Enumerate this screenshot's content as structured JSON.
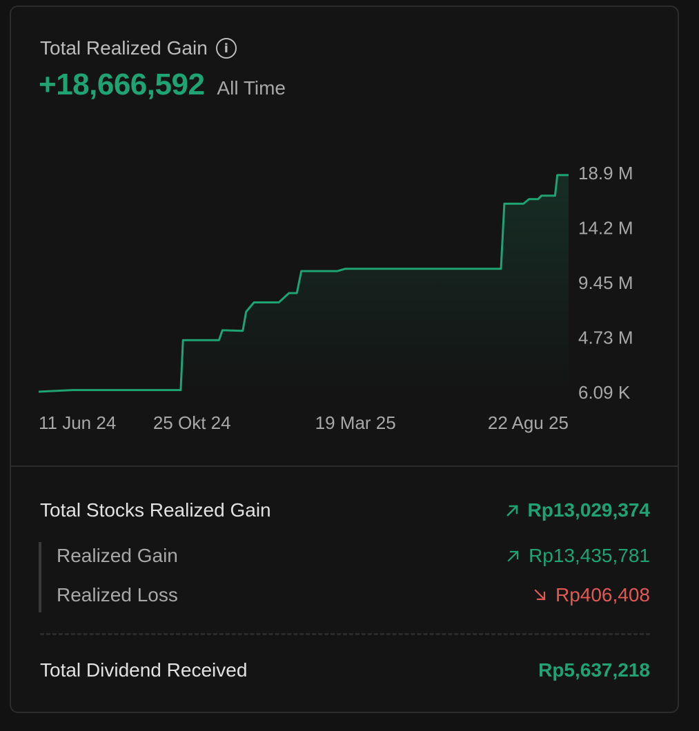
{
  "header": {
    "title": "Total Realized Gain",
    "value": "+18,666,592",
    "period": "All Time"
  },
  "chart_data": {
    "type": "area",
    "y_ticks": [
      "18.9 M",
      "14.2 M",
      "9.45 M",
      "4.73 M",
      "6.09 K"
    ],
    "x_ticks": [
      "11 Jun 24",
      "25 Okt 24",
      "19 Mar 25",
      "22 Agu 25"
    ],
    "ylim": [
      6090,
      18900000
    ],
    "line_color": "#1fa373",
    "grid": false,
    "series": [
      {
        "points": [
          [
            "11 Jun 24",
            6090
          ],
          [
            "11 Jul 24",
            150000
          ],
          [
            "15 Oct 24",
            150000
          ],
          [
            "17 Oct 24",
            4450000
          ],
          [
            "18 Nov 24",
            4450000
          ],
          [
            "21 Nov 24",
            5300000
          ],
          [
            "09 Dec 24",
            5250000
          ],
          [
            "12 Dec 24",
            6900000
          ],
          [
            "19 Dec 24",
            7700000
          ],
          [
            "10 Jan 25",
            7700000
          ],
          [
            "19 Jan 25",
            8500000
          ],
          [
            "26 Jan 25",
            8500000
          ],
          [
            "30 Jan 25",
            10400000
          ],
          [
            "03 Mar 25",
            10400000
          ],
          [
            "10 Mar 25",
            10600000
          ],
          [
            "14 Apr 25",
            10600000
          ],
          [
            "26 Jul 25",
            10600000
          ],
          [
            "29 Jul 25",
            16200000
          ],
          [
            "15 Aug 25",
            16200000
          ],
          [
            "20 Aug 25",
            16600000
          ],
          [
            "28 Aug 25",
            16600000
          ],
          [
            "31 Aug 25",
            16900000
          ],
          [
            "12 Sep 25",
            16900000
          ],
          [
            "14 Sep 25",
            18666592
          ],
          [
            "24 Sep 25",
            18666592
          ]
        ]
      }
    ]
  },
  "summary": {
    "stocks_label": "Total Stocks Realized Gain",
    "stocks_value": "Rp13,029,374",
    "gain_label": "Realized Gain",
    "gain_value": "Rp13,435,781",
    "loss_label": "Realized Loss",
    "loss_value": "Rp406,408",
    "dividend_label": "Total Dividend Received",
    "dividend_value": "Rp5,637,218"
  },
  "icons": {
    "info": "info-icon",
    "up": "arrow-up-right-icon",
    "down": "arrow-down-right-icon"
  },
  "colors": {
    "positive": "#1fa373",
    "negative": "#e05a55",
    "background": "#141414"
  }
}
